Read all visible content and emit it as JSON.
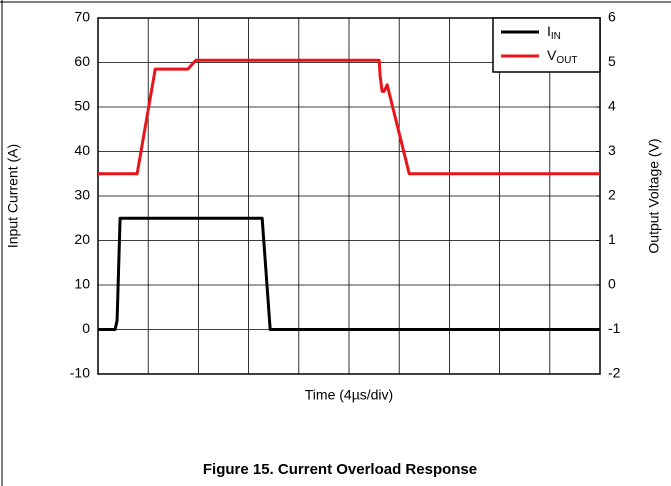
{
  "chart_data": {
    "type": "line",
    "title": "Figure 15. Current Overload Response",
    "xlabel": "Time (4µs/div)",
    "ylabel": "Input Current (A)",
    "y2label": "Output Voltage (V)",
    "xlim": [
      0,
      10
    ],
    "xdivisions": 10,
    "ylim": [
      -10,
      70
    ],
    "yticks": [
      -10,
      0,
      10,
      20,
      30,
      40,
      50,
      60,
      70
    ],
    "y2lim": [
      -2,
      6
    ],
    "y2ticks": [
      -2,
      -1,
      0,
      1,
      2,
      3,
      4,
      5,
      6
    ],
    "grid": true,
    "legend": "upper right",
    "series": [
      {
        "name": "IIN",
        "color": "#000000",
        "x": [
          0,
          0.34,
          0.38,
          0.44,
          3.27,
          3.43,
          10
        ],
        "values": [
          0,
          0,
          2,
          25,
          25,
          0,
          0
        ]
      },
      {
        "name": "VOUT",
        "color": "#e8141b",
        "axis": "y2",
        "x": [
          0,
          0.78,
          1.14,
          1.79,
          1.95,
          5.6,
          5.62,
          5.66,
          5.7,
          5.76,
          6.2,
          10
        ],
        "values": [
          2.5,
          2.5,
          4.85,
          4.85,
          5.05,
          5.05,
          4.7,
          4.35,
          4.35,
          4.5,
          2.5,
          2.5
        ]
      }
    ]
  }
}
